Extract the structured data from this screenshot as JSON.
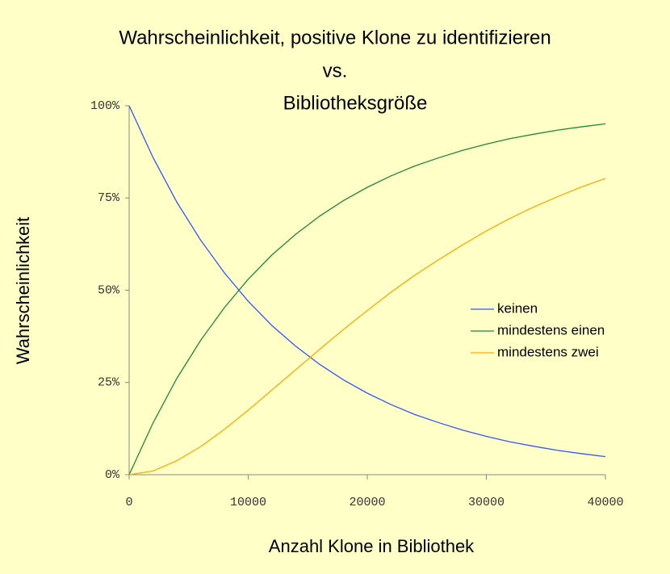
{
  "chart_data": {
    "type": "line",
    "title": [
      "Wahrscheinlichkeit, positive Klone zu identifizieren",
      "vs.",
      "Bibliotheksgröße"
    ],
    "x_label": "Anzahl Klone in Bibliothek",
    "y_label": "Wahrscheinlichkeit",
    "x": [
      0,
      2000,
      4000,
      6000,
      8000,
      10000,
      12000,
      14000,
      16000,
      18000,
      20000,
      22000,
      24000,
      26000,
      28000,
      30000,
      32000,
      34000,
      36000,
      38000,
      40000
    ],
    "series": [
      {
        "name": "keinen",
        "color": "#3355ff",
        "values": [
          100,
          86.0,
          73.9,
          63.6,
          54.7,
          47.0,
          40.4,
          34.8,
          29.9,
          25.7,
          22.1,
          19.0,
          16.3,
          14.1,
          12.1,
          10.4,
          8.9,
          7.7,
          6.6,
          5.7,
          4.9
        ]
      },
      {
        "name": "mindestens einen",
        "color": "#228833",
        "values": [
          0,
          14.0,
          26.1,
          36.4,
          45.3,
          53.0,
          59.6,
          65.2,
          70.1,
          74.3,
          77.9,
          81.0,
          83.7,
          85.9,
          87.9,
          89.6,
          91.1,
          92.3,
          93.4,
          94.3,
          95.1
        ]
      },
      {
        "name": "mindestens zwei",
        "color": "#ffaa00",
        "values": [
          0,
          1.0,
          3.8,
          7.6,
          12.3,
          17.5,
          23.0,
          28.5,
          34.0,
          39.4,
          44.5,
          49.5,
          54.1,
          58.3,
          62.3,
          66.1,
          69.5,
          72.6,
          75.4,
          78.0,
          80.3
        ]
      }
    ],
    "xlim": [
      0,
      40000
    ],
    "xticks": [
      0,
      10000,
      20000,
      30000,
      40000
    ],
    "ylim": [
      0,
      100
    ],
    "yticks": [
      {
        "value": 0,
        "label": "0%"
      },
      {
        "value": 25,
        "label": "25%"
      },
      {
        "value": 50,
        "label": "50%"
      },
      {
        "value": 75,
        "label": "75%"
      },
      {
        "value": 100,
        "label": "100%"
      }
    ],
    "grid": false,
    "legend": "right"
  }
}
